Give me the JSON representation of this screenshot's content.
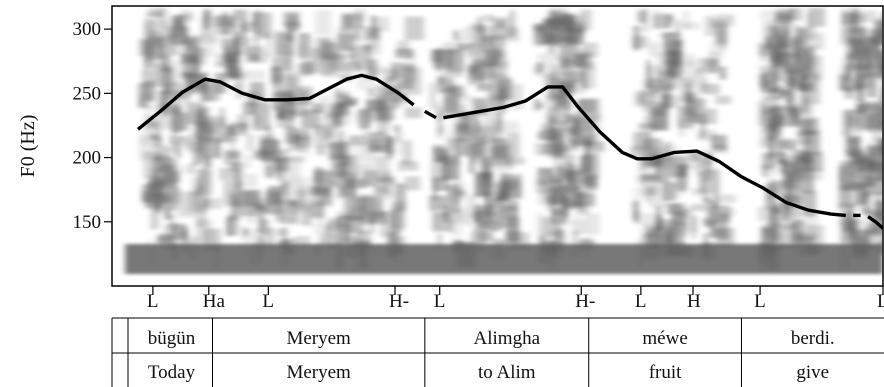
{
  "chart_data": {
    "type": "line",
    "ylabel": "F0 (Hz)",
    "ylim": [
      100,
      318
    ],
    "yticks": [
      150,
      200,
      250,
      300
    ],
    "time_range": [
      0,
      1
    ],
    "background": "spectrogram",
    "series": [
      {
        "segments": [
          [
            [
              0.0,
              222
            ],
            [
              0.03,
              236
            ],
            [
              0.06,
              251
            ],
            [
              0.09,
              261
            ],
            [
              0.11,
              259
            ],
            [
              0.14,
              250
            ],
            [
              0.17,
              245
            ],
            [
              0.2,
              245
            ],
            [
              0.23,
              246
            ],
            [
              0.25,
              252
            ],
            [
              0.28,
              261
            ],
            [
              0.3,
              264
            ],
            [
              0.32,
              261
            ],
            [
              0.35,
              250
            ],
            [
              0.37,
              241
            ]
          ],
          [
            [
              0.385,
              236
            ],
            [
              0.4,
              231
            ]
          ],
          [
            [
              0.41,
              231
            ],
            [
              0.43,
              233
            ],
            [
              0.46,
              236
            ],
            [
              0.49,
              239
            ],
            [
              0.52,
              244
            ],
            [
              0.55,
              255
            ],
            [
              0.57,
              255
            ],
            [
              0.59,
              240
            ],
            [
              0.62,
              220
            ],
            [
              0.65,
              204
            ],
            [
              0.67,
              199
            ],
            [
              0.69,
              199
            ],
            [
              0.72,
              204
            ],
            [
              0.75,
              205
            ],
            [
              0.78,
              197
            ],
            [
              0.81,
              185
            ],
            [
              0.84,
              176
            ],
            [
              0.87,
              165
            ],
            [
              0.9,
              159
            ],
            [
              0.93,
              156
            ],
            [
              0.95,
              155
            ]
          ],
          [
            [
              0.96,
              155
            ],
            [
              0.97,
              155
            ]
          ],
          [
            [
              0.98,
              154
            ],
            [
              0.99,
              150
            ],
            [
              1.0,
              145
            ],
            [
              1.02,
              138
            ]
          ]
        ]
      }
    ],
    "tones": [
      {
        "label": "L",
        "t": 0.02
      },
      {
        "label": "Ha",
        "t": 0.095
      },
      {
        "label": "L",
        "t": 0.175
      },
      {
        "label": "H-",
        "t": 0.345
      },
      {
        "label": "L",
        "t": 0.405
      },
      {
        "label": "H-",
        "t": 0.595
      },
      {
        "label": "L",
        "t": 0.675
      },
      {
        "label": "H",
        "t": 0.745
      },
      {
        "label": "L",
        "t": 0.835
      },
      {
        "label": "L%",
        "t": 1.0
      }
    ],
    "words": [
      {
        "text": "bügün",
        "gloss": "Today",
        "start": -0.01,
        "end": 0.1
      },
      {
        "text": "Meryem",
        "gloss": "Meryem",
        "start": 0.1,
        "end": 0.385
      },
      {
        "text": "Alimgha",
        "gloss": "to Alim",
        "start": 0.385,
        "end": 0.605
      },
      {
        "text": "méwe",
        "gloss": "fruit",
        "start": 0.605,
        "end": 0.81
      },
      {
        "text": "berdi.",
        "gloss": "give",
        "start": 0.81,
        "end": 1.02
      }
    ],
    "colors": {
      "curve": "#000000",
      "spectrogram": "#333333"
    }
  }
}
